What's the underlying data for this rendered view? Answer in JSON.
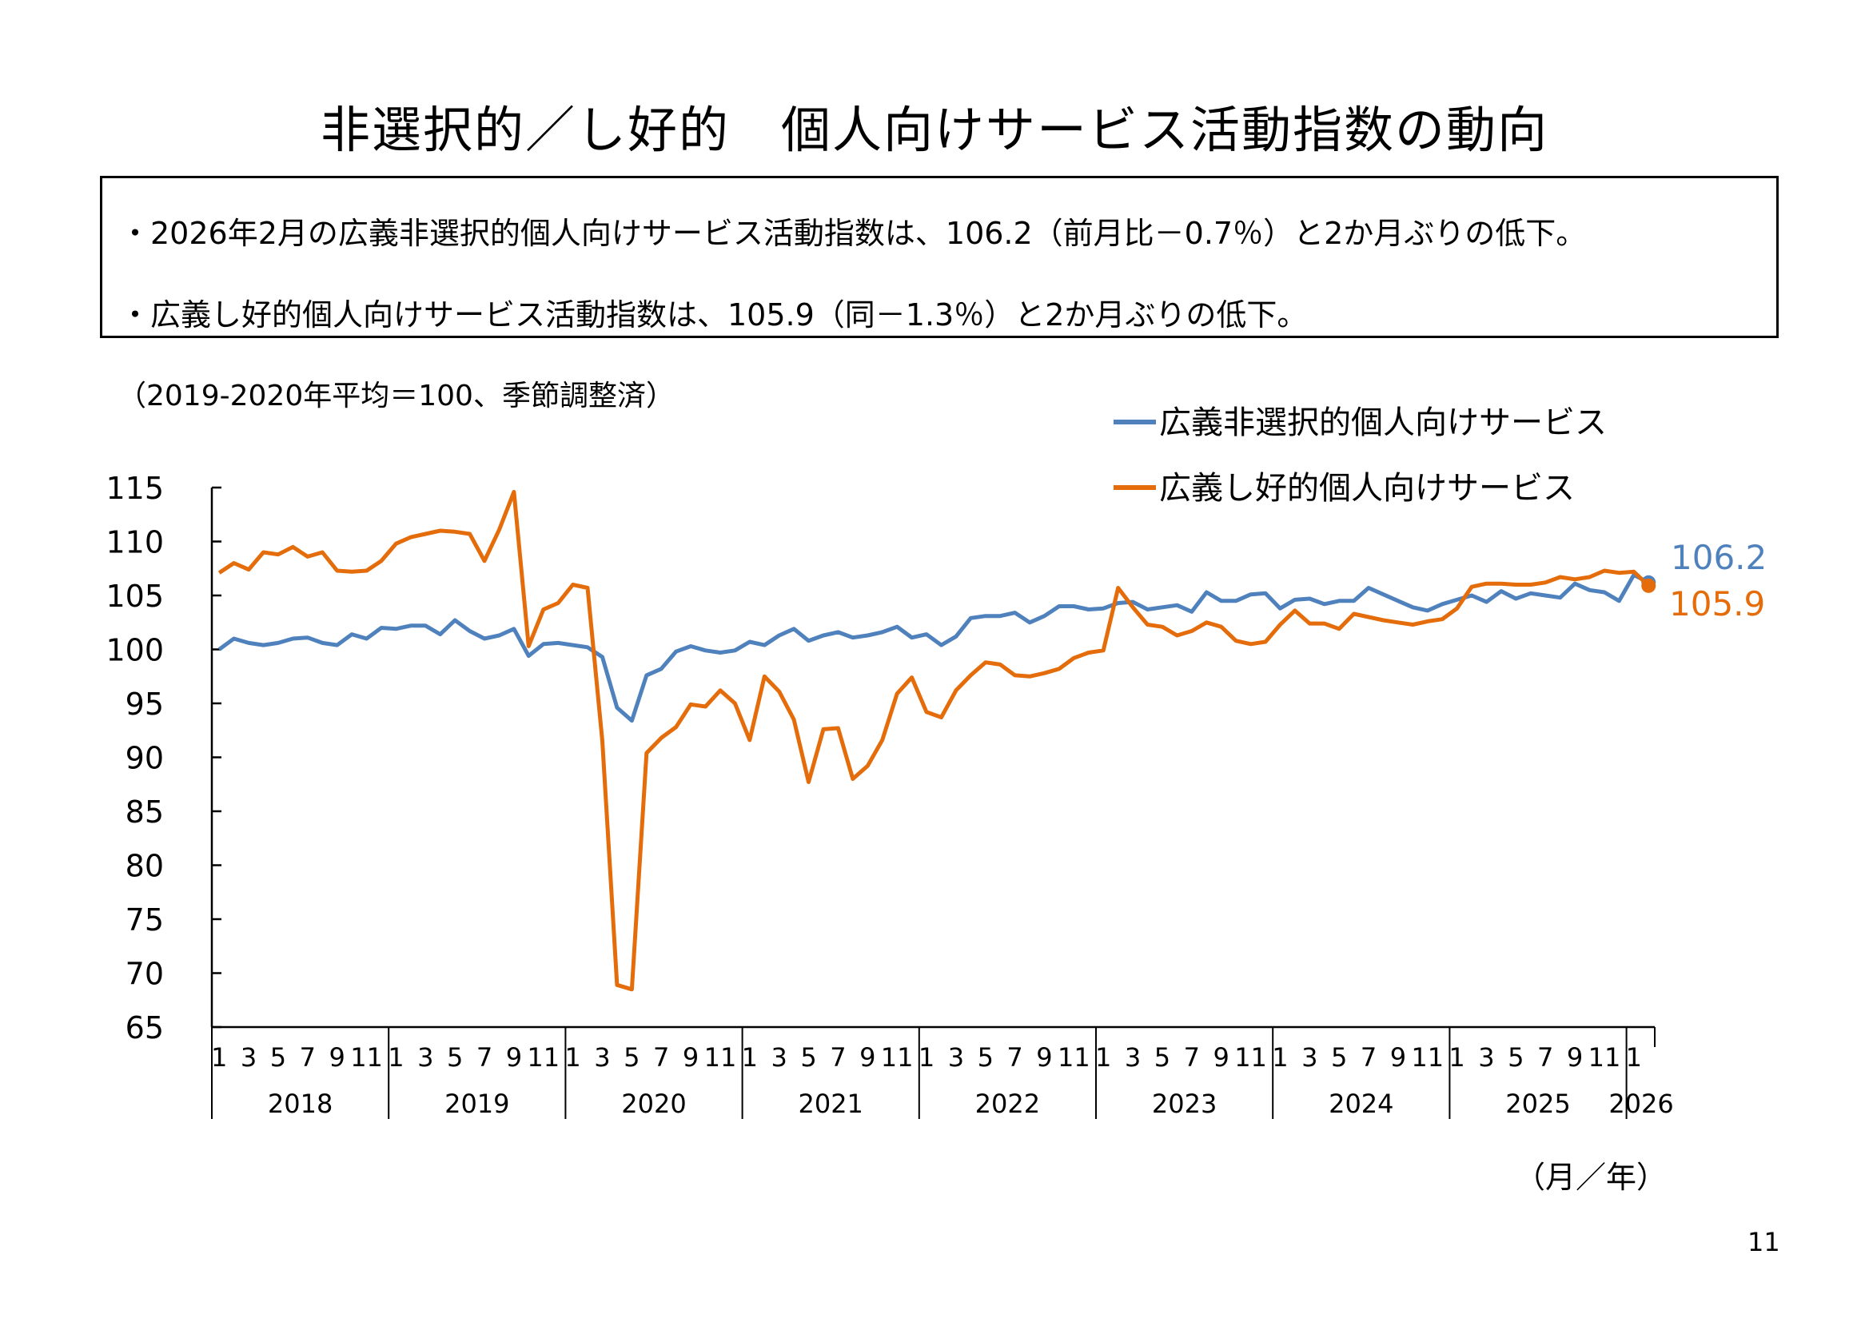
{
  "title": "非選択的／し好的　個人向けサービス活動指数の動向",
  "summary": {
    "bullet1": "・2026年2月の広義非選択的個人向けサービス活動指数は、106.2（前月比－0.7％）と2か月ぶりの低下。",
    "bullet2": "・広義し好的個人向けサービス活動指数は、105.9（同－1.3％）と2か月ぶりの低下。"
  },
  "note": "（2019-2020年平均＝100、季節調整済）",
  "unit_label": "（月／年）",
  "page_number": "11",
  "chart_data": {
    "type": "line",
    "ylim": [
      65,
      115
    ],
    "yticks": [
      "65",
      "70",
      "75",
      "80",
      "85",
      "90",
      "95",
      "100",
      "105",
      "110",
      "115"
    ],
    "years": [
      "2018",
      "2019",
      "2020",
      "2021",
      "2022",
      "2023",
      "2024",
      "2025",
      "2026"
    ],
    "month_labels": [
      "1",
      "3",
      "5",
      "7",
      "9",
      "11"
    ],
    "start": "2018-01",
    "end": "2026-02",
    "legend_position": "top-right",
    "series": [
      {
        "name": "広義非選択的個人向けサービス",
        "color": "#4F81BD",
        "end_label": "106.2",
        "values": [
          100.0,
          101.0,
          100.6,
          100.4,
          100.6,
          101.0,
          101.1,
          100.6,
          100.4,
          101.4,
          101.0,
          102.0,
          101.9,
          102.2,
          102.2,
          101.4,
          102.7,
          101.7,
          101.0,
          101.3,
          101.9,
          99.4,
          100.5,
          100.6,
          100.4,
          100.2,
          99.3,
          94.6,
          93.4,
          97.6,
          98.2,
          99.8,
          100.3,
          99.9,
          99.7,
          99.9,
          100.7,
          100.4,
          101.3,
          101.9,
          100.8,
          101.3,
          101.6,
          101.1,
          101.3,
          101.6,
          102.1,
          101.1,
          101.4,
          100.4,
          101.2,
          102.9,
          103.1,
          103.1,
          103.4,
          102.5,
          103.1,
          104.0,
          104.0,
          103.7,
          103.8,
          104.3,
          104.4,
          103.7,
          103.9,
          104.1,
          103.5,
          105.3,
          104.5,
          104.5,
          105.1,
          105.2,
          103.8,
          104.6,
          104.7,
          104.2,
          104.5,
          104.5,
          105.7,
          105.1,
          104.5,
          103.9,
          103.6,
          104.2,
          104.6,
          105.0,
          104.4,
          105.4,
          104.7,
          105.2,
          105.0,
          104.8,
          106.1,
          105.5,
          105.3,
          104.5,
          106.9,
          106.2
        ]
      },
      {
        "name": "広義し好的個人向けサービス",
        "color": "#E46C0A",
        "end_label": "105.9",
        "values": [
          107.1,
          108.0,
          107.4,
          109.0,
          108.8,
          109.5,
          108.6,
          109.0,
          107.3,
          107.2,
          107.3,
          108.2,
          109.8,
          110.4,
          110.7,
          111.0,
          110.9,
          110.7,
          108.2,
          111.1,
          114.6,
          100.3,
          103.7,
          104.3,
          106.0,
          105.7,
          91.5,
          68.9,
          68.5,
          90.4,
          91.8,
          92.8,
          94.9,
          94.7,
          96.2,
          95.0,
          91.6,
          97.5,
          96.1,
          93.5,
          87.7,
          92.6,
          92.7,
          88.0,
          89.2,
          91.6,
          95.9,
          97.4,
          94.2,
          93.7,
          96.2,
          97.6,
          98.8,
          98.6,
          97.6,
          97.5,
          97.8,
          98.2,
          99.2,
          99.7,
          99.9,
          105.7,
          103.9,
          102.3,
          102.1,
          101.3,
          101.7,
          102.5,
          102.1,
          100.8,
          100.5,
          100.7,
          102.3,
          103.6,
          102.4,
          102.4,
          101.9,
          103.3,
          103.0,
          102.7,
          102.5,
          102.3,
          102.6,
          102.8,
          103.8,
          105.8,
          106.1,
          106.1,
          106.0,
          106.0,
          106.2,
          106.7,
          106.5,
          106.7,
          107.3,
          107.1,
          107.2,
          105.9
        ]
      }
    ]
  }
}
